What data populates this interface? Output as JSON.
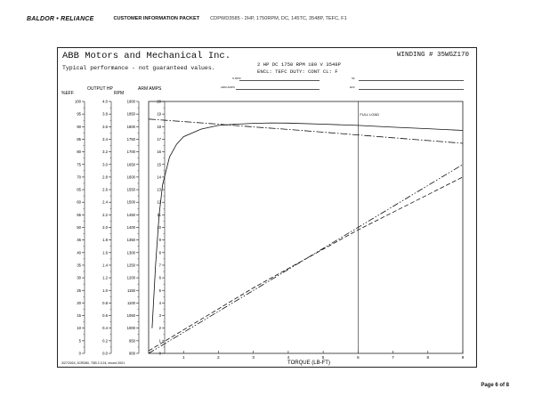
{
  "header": {
    "logo": "BALDOR • RELIANCE",
    "title": "CUSTOMER INFORMATION PACKET",
    "description": "CDPWD3585 - 2HP, 1750RPM, DC, 145TC, 3548P, TEFC, F1"
  },
  "sheet": {
    "company": "ABB Motors and Mechanical Inc.",
    "winding": "WINDING # 35WGZ170",
    "disclaimer": "Typical performance - not guaranteed values.",
    "rating_line": "2 HP  DC  1750 RPM  180 V  3548P",
    "encl_line": "ENCL: TEFC  DUTY: CONT  CL: F",
    "form_labels": [
      "S.RPM",
      "ARM AMPS",
      "SF",
      "EFF"
    ],
    "axis_headers": {
      "eff": "%EFF",
      "hp": "OUTPUT HP",
      "rpm": "RPM",
      "amps": "ARM AMPS"
    },
    "footnote": "3/27/2024, 3CRD80, 7DB 2.3.24, record 2001"
  },
  "footer": {
    "page": "Page 6 of 8"
  },
  "chart_data": {
    "type": "line",
    "xlabel": "TORQUE (LB-FT)",
    "xlim": [
      0,
      9
    ],
    "x_ticks": [
      1,
      2,
      3,
      4,
      5,
      6,
      7,
      8,
      9
    ],
    "annotation": "FULL LOAD",
    "full_load_torque": 6.0,
    "y_axes": [
      {
        "key": "eff",
        "label": "%EFF",
        "ticks": [
          "0",
          "5",
          "10",
          "15",
          "20",
          "25",
          "30",
          "35",
          "40",
          "45",
          "50",
          "55",
          "60",
          "65",
          "70",
          "75",
          "80",
          "85",
          "90",
          "95",
          "100"
        ]
      },
      {
        "key": "hp",
        "label": "OUTPUT HP",
        "ticks": [
          "0.0",
          "0.2",
          "0.4",
          "0.6",
          "0.8",
          "1.0",
          "1.2",
          "1.4",
          "1.6",
          "1.8",
          "2.0",
          "2.2",
          "2.4",
          "2.6",
          "2.8",
          "3.0",
          "3.2",
          "3.4",
          "3.6",
          "3.8",
          "4.0"
        ]
      },
      {
        "key": "rpm",
        "label": "RPM",
        "ticks": [
          "900",
          "950",
          "1000",
          "1050",
          "1100",
          "1150",
          "1200",
          "1250",
          "1300",
          "1350",
          "1400",
          "1450",
          "1500",
          "1550",
          "1600",
          "1650",
          "1700",
          "1750",
          "1800",
          "1850",
          "1900"
        ]
      },
      {
        "key": "amps",
        "label": "ARM AMPS",
        "ticks": [
          "0",
          "1",
          "2",
          "3",
          "4",
          "5",
          "6",
          "7",
          "8",
          "9",
          "10",
          "11",
          "12",
          "13",
          "14",
          "15",
          "16",
          "17",
          "18",
          "19",
          "20"
        ]
      }
    ],
    "series": [
      {
        "name": "%EFF",
        "axis": "eff",
        "style": "solid",
        "x": [
          0.1,
          0.2,
          0.3,
          0.4,
          0.6,
          0.8,
          1.0,
          1.5,
          2.0,
          2.5,
          3.0,
          3.5,
          4.0,
          5.0,
          6.0,
          7.0,
          8.0,
          9.0
        ],
        "y": [
          10,
          35,
          55,
          67,
          78,
          83,
          86,
          89,
          90.5,
          91,
          91.3,
          91.5,
          91.4,
          91.0,
          90.5,
          89.8,
          89.2,
          88.5
        ]
      },
      {
        "name": "RPM",
        "axis": "rpm",
        "style": "dashdot",
        "x": [
          0,
          1,
          2,
          3,
          4,
          5,
          6,
          7,
          8,
          9
        ],
        "y": [
          1830,
          1820,
          1810,
          1799,
          1789,
          1778,
          1767,
          1756,
          1745,
          1734
        ]
      },
      {
        "name": "OUTPUT HP",
        "axis": "hp",
        "style": "dashdotdot",
        "x": [
          0,
          3,
          6,
          9
        ],
        "y": [
          0.0,
          1.0,
          2.0,
          3.0
        ]
      },
      {
        "name": "ARM AMPS",
        "axis": "amps",
        "style": "dashed",
        "x": [
          0,
          3,
          6,
          9
        ],
        "y": [
          0.2,
          5.2,
          9.8,
          14.0
        ]
      }
    ]
  }
}
